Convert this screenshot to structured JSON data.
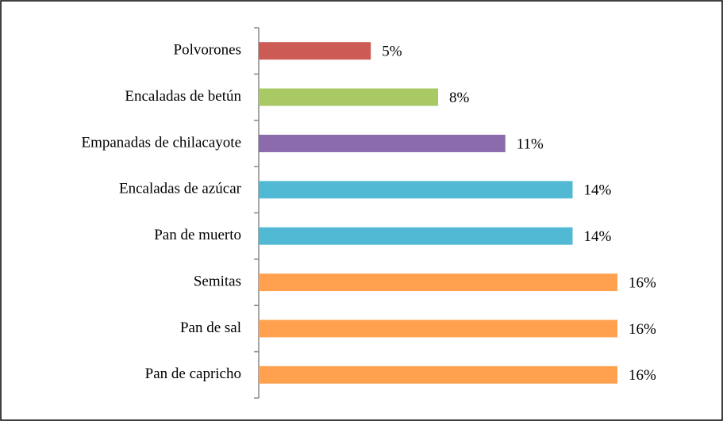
{
  "chart_data": {
    "type": "bar",
    "orientation": "horizontal",
    "categories": [
      "Polvorones",
      "Encaladas de betún",
      "Empanadas de chilacayote",
      "Encaladas de azúcar",
      "Pan de muerto",
      "Semitas",
      "Pan de sal",
      "Pan de capricho"
    ],
    "values": [
      5,
      8,
      11,
      14,
      14,
      16,
      16,
      16
    ],
    "value_labels": [
      "5%",
      "8%",
      "11%",
      "14%",
      "14%",
      "16%",
      "16%",
      "16%"
    ],
    "colors": [
      "#cd5b55",
      "#a9c965",
      "#8b6bac",
      "#52b9d5",
      "#52b9d5",
      "#ffa14f",
      "#ffa14f",
      "#ffa14f"
    ]
  }
}
